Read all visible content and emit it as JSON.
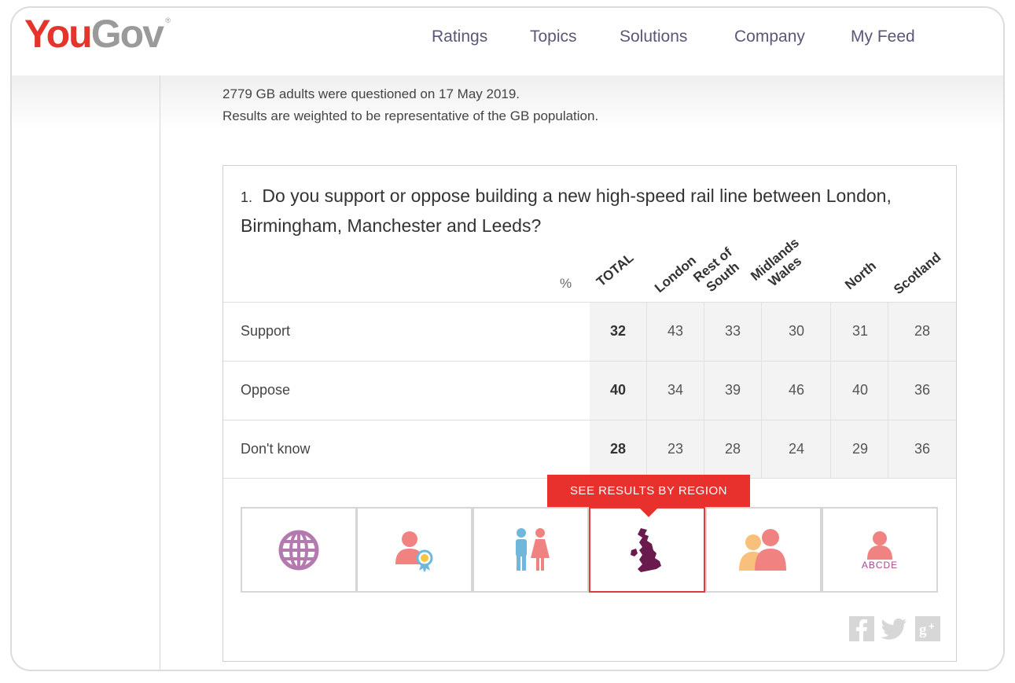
{
  "header": {
    "logo_you": "You",
    "logo_gov": "Gov",
    "logo_reg": "®",
    "nav": [
      {
        "label": "Ratings"
      },
      {
        "label": "Topics"
      },
      {
        "label": "Solutions"
      },
      {
        "label": "Company"
      },
      {
        "label": "My Feed"
      }
    ]
  },
  "intro": {
    "line1": "2779 GB adults were questioned on 17 May 2019.",
    "line2": "Results are weighted to be representative of the GB population."
  },
  "question": {
    "number": "1.",
    "text": "Do you support or oppose building a new high-speed rail line between London, Birmingham, Manchester and Leeds?"
  },
  "table": {
    "unit": "%",
    "columns": [
      "TOTAL",
      "London",
      "Rest of South",
      "Midlands Wales",
      "North",
      "Scotland"
    ],
    "column_lines": [
      [
        "TOTAL"
      ],
      [
        "London"
      ],
      [
        "Rest of",
        "South"
      ],
      [
        "Midlands",
        "Wales"
      ],
      [
        "North"
      ],
      [
        "Scotland"
      ]
    ],
    "rows": [
      {
        "label": "Support",
        "values": [
          "32",
          "43",
          "33",
          "30",
          "31",
          "28"
        ]
      },
      {
        "label": "Oppose",
        "values": [
          "40",
          "34",
          "39",
          "46",
          "40",
          "36"
        ]
      },
      {
        "label": "Don't know",
        "values": [
          "28",
          "23",
          "28",
          "24",
          "29",
          "36"
        ]
      }
    ]
  },
  "tabs": {
    "tooltip": "SEE RESULTS BY REGION",
    "items": [
      {
        "icon": "globe-icon"
      },
      {
        "icon": "person-ribbon-icon"
      },
      {
        "icon": "male-female-icon"
      },
      {
        "icon": "uk-map-icon",
        "active": true
      },
      {
        "icon": "two-people-icon"
      },
      {
        "icon": "person-abcde-icon",
        "label": "ABCDE"
      }
    ]
  },
  "social": [
    {
      "icon": "facebook-icon",
      "glyph": "f"
    },
    {
      "icon": "twitter-icon",
      "glyph": "t"
    },
    {
      "icon": "google-plus-icon",
      "glyph": "g+"
    }
  ],
  "colors": {
    "brand_red": "#e4342b",
    "nav_text": "#5a5777",
    "tooltip_red": "#e8302c",
    "globe_purple": "#b47ab0",
    "map_purple": "#6b1a4d",
    "person_pink": "#f08282"
  }
}
